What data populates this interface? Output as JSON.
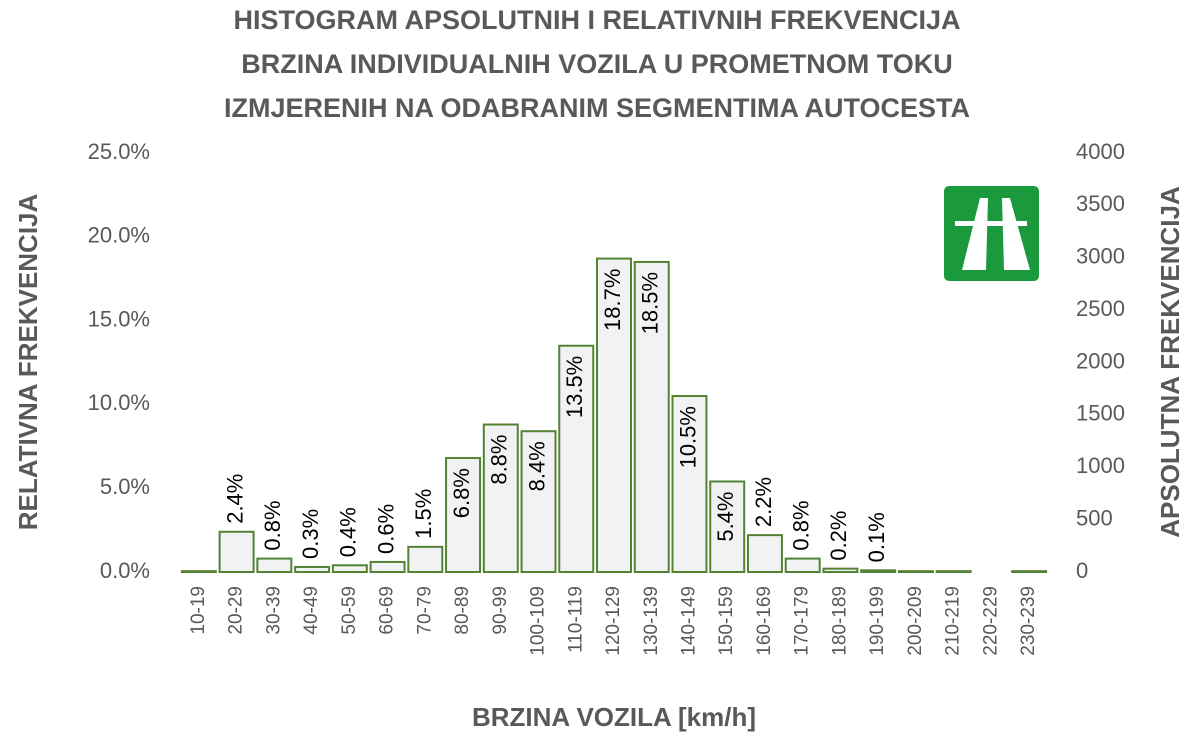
{
  "chart_data": {
    "type": "bar",
    "title": [
      "HISTOGRAM APSOLUTNIH I RELATIVNIH FREKVENCIJA",
      "BRZINA INDIVIDUALNIH VOZILA U PROMETNOM TOKU",
      "IZMJERENIH NA ODABRANIM SEGMENTIMA AUTOCESTA"
    ],
    "xlabel": "BRZINA VOZILA [km/h]",
    "ylabel": "RELATIVNA FREKVENCIJA",
    "y2label": "APSOLUTNA FREKVENCIJA",
    "categories": [
      "10-19",
      "20-29",
      "30-39",
      "40-49",
      "50-59",
      "60-69",
      "70-79",
      "80-89",
      "90-99",
      "100-109",
      "110-119",
      "120-129",
      "130-139",
      "140-149",
      "150-159",
      "160-169",
      "170-179",
      "180-189",
      "190-199",
      "200-209",
      "210-219",
      "220-229",
      "230-239"
    ],
    "values": [
      0.05,
      2.4,
      0.8,
      0.3,
      0.4,
      0.6,
      1.5,
      6.8,
      8.8,
      8.4,
      13.5,
      18.7,
      18.5,
      10.5,
      5.4,
      2.2,
      0.8,
      0.2,
      0.1,
      0.05,
      0.05,
      0,
      0.05
    ],
    "value_labels": [
      null,
      "2.4%",
      "0.8%",
      "0.3%",
      "0.4%",
      "0.6%",
      "1.5%",
      "6.8%",
      "8.8%",
      "8.4%",
      "13.5%",
      "18.7%",
      "18.5%",
      "10.5%",
      "5.4%",
      "2.2%",
      "0.8%",
      "0.2%",
      "0.1%",
      null,
      null,
      null,
      null
    ],
    "color": "#f2f2f2",
    "edge_color": "#548235",
    "ylim": [
      0,
      25
    ],
    "yticks": [
      {
        "value": 0,
        "label": "0.0%"
      },
      {
        "value": 5,
        "label": "5.0%"
      },
      {
        "value": 10,
        "label": "10.0%"
      },
      {
        "value": 15,
        "label": "15.0%"
      },
      {
        "value": 20,
        "label": "20.0%"
      },
      {
        "value": 25,
        "label": "25.0%"
      }
    ],
    "y2lim": [
      0,
      4000
    ],
    "y2ticks": [
      0,
      500,
      1000,
      1500,
      2000,
      2500,
      3000,
      3500,
      4000
    ]
  }
}
